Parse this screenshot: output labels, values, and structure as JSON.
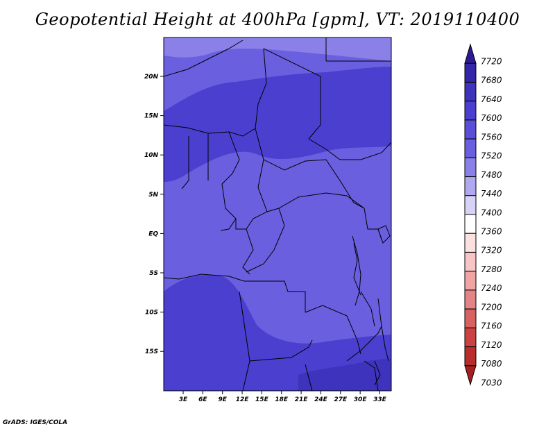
{
  "title": "Geopotential Height at 400hPa [gpm], VT: 2019110400",
  "credit": "GrADS: IGES/COLA",
  "lat_labels": [
    "20N",
    "15N",
    "10N",
    "5N",
    "EQ",
    "5S",
    "10S",
    "15S"
  ],
  "lon_labels": [
    "3E",
    "6E",
    "9E",
    "12E",
    "15E",
    "18E",
    "21E",
    "24E",
    "27E",
    "30E",
    "33E"
  ],
  "colorbar": {
    "labels": [
      "7720",
      "7680",
      "7640",
      "7600",
      "7560",
      "7520",
      "7480",
      "7440",
      "7400",
      "7360",
      "7320",
      "7280",
      "7240",
      "7200",
      "7160",
      "7120",
      "7080",
      "7030"
    ],
    "colors": [
      "#2d1a94",
      "#3426a8",
      "#3d33bd",
      "#4a3fcf",
      "#5a4fd8",
      "#6a5fdf",
      "#8a80e8",
      "#b0a9f0",
      "#d6d2f8",
      "#ffffff",
      "#fde0e0",
      "#f9c4c4",
      "#f0a4a4",
      "#e58484",
      "#d86262",
      "#cc4242",
      "#b92d2d",
      "#a52020"
    ]
  },
  "map_colors": {
    "band_7560": "#6a5fdf",
    "band_7600": "#5a4fd8",
    "band_7640": "#4a3fcf",
    "band_7520": "#8a80e8"
  }
}
